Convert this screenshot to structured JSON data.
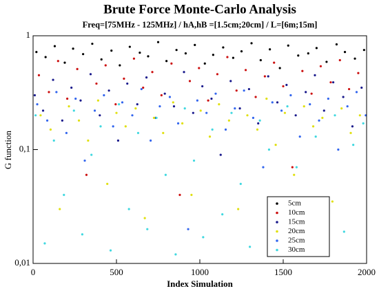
{
  "chart_data": {
    "type": "scatter",
    "title": "Brute Force Monte-Carlo Analysis",
    "subtitle": "Freq=[75MHz - 125MHz] / hA,hB =[1.5cm;20cm] / L=[6m;15m]",
    "x_label": "Index Simulation",
    "y_label": "G function",
    "xlim": [
      0,
      2000
    ],
    "xticks": [
      0,
      500,
      1000,
      1500,
      2000
    ],
    "ylim": [
      0.01,
      1
    ],
    "yscale": "log",
    "yticks": [
      {
        "value": 0.01,
        "label": "0,01"
      },
      {
        "value": 0.1,
        "label": "0,1"
      },
      1
    ],
    "legend": "lower right",
    "series": [
      {
        "name": "5cm",
        "color": "#000000",
        "x": [
          20,
          75,
          130,
          190,
          240,
          300,
          355,
          410,
          470,
          520,
          580,
          640,
          690,
          750,
          800,
          860,
          915,
          970,
          1030,
          1080,
          1140,
          1200,
          1250,
          1310,
          1365,
          1420,
          1480,
          1530,
          1590,
          1650,
          1700,
          1760,
          1820,
          1870,
          1930,
          1985
        ],
        "y": [
          0.72,
          0.65,
          0.81,
          0.58,
          0.77,
          0.69,
          0.85,
          0.62,
          0.74,
          0.55,
          0.8,
          0.71,
          0.66,
          0.88,
          0.6,
          0.75,
          0.7,
          0.83,
          0.57,
          0.68,
          0.79,
          0.64,
          0.73,
          0.86,
          0.61,
          0.76,
          0.52,
          0.82,
          0.67,
          0.7,
          0.78,
          0.59,
          0.84,
          0.72,
          0.63,
          0.75
        ]
      },
      {
        "name": "10cm",
        "color": "#cc1111",
        "x": [
          35,
          95,
          150,
          205,
          265,
          320,
          380,
          435,
          495,
          545,
          605,
          660,
          715,
          770,
          830,
          880,
          940,
          995,
          1050,
          1105,
          1165,
          1220,
          1275,
          1335,
          1390,
          1445,
          1500,
          1555,
          1615,
          1670,
          1725,
          1785,
          1840,
          1895,
          1950
        ],
        "y": [
          0.45,
          0.32,
          0.6,
          0.28,
          0.51,
          0.06,
          0.38,
          0.55,
          0.25,
          0.42,
          0.63,
          0.35,
          0.48,
          0.3,
          0.57,
          0.04,
          0.4,
          0.52,
          0.27,
          0.46,
          0.65,
          0.33,
          0.5,
          0.29,
          0.44,
          0.58,
          0.36,
          0.07,
          0.49,
          0.31,
          0.54,
          0.39,
          0.61,
          0.34,
          0.47
        ]
      },
      {
        "name": "15cm",
        "color": "#1a1a8c",
        "x": [
          10,
          60,
          120,
          175,
          230,
          285,
          345,
          400,
          455,
          510,
          565,
          625,
          680,
          735,
          790,
          845,
          905,
          960,
          1015,
          1070,
          1125,
          1185,
          1240,
          1295,
          1350,
          1410,
          1465,
          1520,
          1575,
          1635,
          1690,
          1745,
          1800,
          1860,
          1915,
          1970
        ],
        "y": [
          0.3,
          0.22,
          0.41,
          0.18,
          0.35,
          0.27,
          0.46,
          0.2,
          0.33,
          0.12,
          0.38,
          0.25,
          0.43,
          0.19,
          0.31,
          0.24,
          0.48,
          0.21,
          0.36,
          0.28,
          0.09,
          0.4,
          0.23,
          0.34,
          0.17,
          0.44,
          0.26,
          0.37,
          0.2,
          0.32,
          0.45,
          0.22,
          0.39,
          0.29,
          0.16,
          0.35
        ]
      },
      {
        "name": "20cm",
        "color": "#e0e010",
        "x": [
          45,
          105,
          160,
          215,
          275,
          330,
          390,
          445,
          500,
          555,
          615,
          670,
          725,
          780,
          840,
          895,
          950,
          1005,
          1060,
          1115,
          1175,
          1230,
          1285,
          1345,
          1400,
          1455,
          1510,
          1565,
          1625,
          1680,
          1735,
          1795,
          1850,
          1905,
          1960
        ],
        "y": [
          0.2,
          0.15,
          0.03,
          0.24,
          0.18,
          0.12,
          0.27,
          0.05,
          0.21,
          0.16,
          0.23,
          0.025,
          0.19,
          0.14,
          0.26,
          0.17,
          0.04,
          0.22,
          0.13,
          0.25,
          0.18,
          0.03,
          0.2,
          0.15,
          0.28,
          0.11,
          0.21,
          0.06,
          0.24,
          0.16,
          0.19,
          0.035,
          0.23,
          0.14,
          0.2
        ]
      },
      {
        "name": "25cm",
        "color": "#3366ee",
        "x": [
          25,
          85,
          140,
          200,
          255,
          310,
          370,
          425,
          480,
          535,
          595,
          650,
          705,
          760,
          820,
          870,
          930,
          985,
          1040,
          1095,
          1155,
          1210,
          1265,
          1320,
          1380,
          1435,
          1490,
          1545,
          1600,
          1660,
          1715,
          1770,
          1830,
          1885,
          1940,
          1995
        ],
        "y": [
          0.25,
          0.18,
          0.32,
          0.14,
          0.28,
          0.08,
          0.22,
          0.3,
          0.16,
          0.26,
          0.2,
          0.34,
          0.12,
          0.24,
          0.29,
          0.17,
          0.02,
          0.27,
          0.21,
          0.31,
          0.15,
          0.23,
          0.33,
          0.19,
          0.07,
          0.26,
          0.22,
          0.3,
          0.13,
          0.25,
          0.18,
          0.28,
          0.1,
          0.24,
          0.32,
          0.2
        ]
      },
      {
        "name": "30cm",
        "color": "#40d8e0",
        "x": [
          15,
          70,
          125,
          185,
          245,
          295,
          350,
          405,
          465,
          515,
          575,
          630,
          685,
          740,
          795,
          855,
          910,
          965,
          1020,
          1075,
          1135,
          1190,
          1245,
          1300,
          1360,
          1415,
          1470,
          1525,
          1580,
          1640,
          1695,
          1750,
          1810,
          1865,
          1920,
          1980
        ],
        "y": [
          0.2,
          0.015,
          0.12,
          0.04,
          0.22,
          0.018,
          0.09,
          0.16,
          0.013,
          0.25,
          0.03,
          0.14,
          0.02,
          0.19,
          0.06,
          0.012,
          0.23,
          0.08,
          0.017,
          0.15,
          0.027,
          0.21,
          0.05,
          0.014,
          0.18,
          0.1,
          0.022,
          0.24,
          0.07,
          0.016,
          0.13,
          0.035,
          0.2,
          0.019,
          0.11,
          0.17
        ]
      }
    ]
  }
}
